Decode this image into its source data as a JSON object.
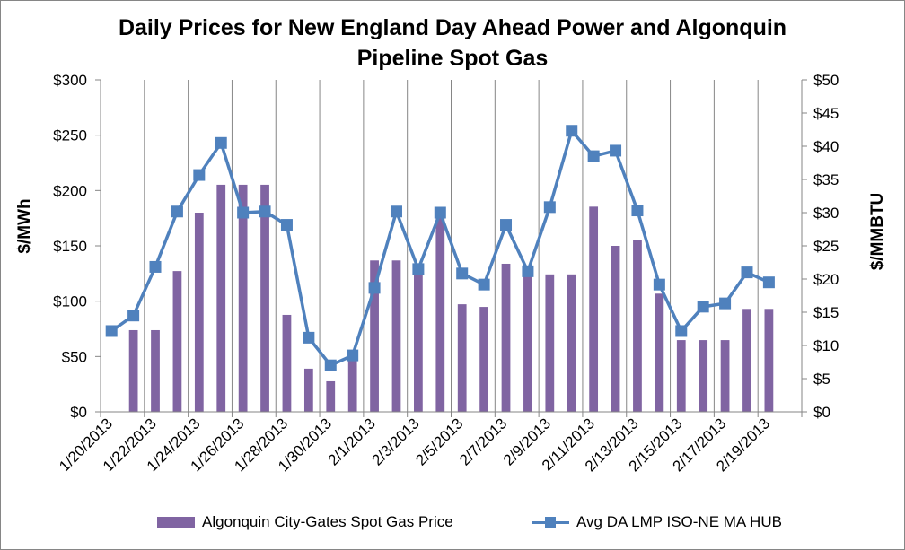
{
  "chart_data": {
    "type": "bar+line",
    "title_line1": "Daily Prices for New England Day Ahead Power and Algonquin",
    "title_line2": "Pipeline Spot Gas",
    "y_left_label": "$/MWh",
    "y_right_label": "$/MMBTU",
    "y_left_ticks": [
      "$0",
      "$50",
      "$100",
      "$150",
      "$200",
      "$250",
      "$300"
    ],
    "y_right_ticks": [
      "$0",
      "$5",
      "$10",
      "$15",
      "$20",
      "$25",
      "$30",
      "$35",
      "$40",
      "$45",
      "$50"
    ],
    "y_left_lim": [
      0,
      300
    ],
    "y_right_lim": [
      0,
      50
    ],
    "x_tick_labels": [
      "1/20/2013",
      "1/22/2013",
      "1/24/2013",
      "1/26/2013",
      "1/28/2013",
      "1/30/2013",
      "2/1/2013",
      "2/3/2013",
      "2/5/2013",
      "2/7/2013",
      "2/9/2013",
      "2/11/2013",
      "2/13/2013",
      "2/15/2013",
      "2/17/2013",
      "2/19/2013"
    ],
    "x_start_date": "2013-01-20",
    "x_end_date": "2013-02-20",
    "grid": "vertical",
    "legend_position": "bottom",
    "series": [
      {
        "name": "Algonquin City-Gates Spot Gas Price",
        "type": "bar",
        "axis": "right",
        "color": "#8064A2",
        "dates": [
          "1/21/2013",
          "1/22/2013",
          "1/23/2013",
          "1/24/2013",
          "1/25/2013",
          "1/26/2013",
          "1/27/2013",
          "1/28/2013",
          "1/29/2013",
          "1/30/2013",
          "1/31/2013",
          "2/1/2013",
          "2/2/2013",
          "2/3/2013",
          "2/4/2013",
          "2/5/2013",
          "2/6/2013",
          "2/7/2013",
          "2/8/2013",
          "2/9/2013",
          "2/10/2013",
          "2/11/2013",
          "2/12/2013",
          "2/13/2013",
          "2/14/2013",
          "2/15/2013",
          "2/16/2013",
          "2/17/2013",
          "2/18/2013",
          "2/19/2013",
          "2/20/2013"
        ],
        "values": [
          12.3,
          12.3,
          21.2,
          30.0,
          34.2,
          34.2,
          34.2,
          14.6,
          6.5,
          4.6,
          8.4,
          22.8,
          22.8,
          21.7,
          29.5,
          16.2,
          15.8,
          22.3,
          21.0,
          20.7,
          20.7,
          30.9,
          25.0,
          25.9,
          17.8,
          10.8,
          10.8,
          10.8,
          15.5,
          15.5,
          0
        ]
      },
      {
        "name": "Avg DA LMP ISO-NE MA HUB",
        "type": "line",
        "axis": "left",
        "color": "#4F81BD",
        "dates": [
          "1/20/2013",
          "1/21/2013",
          "1/22/2013",
          "1/23/2013",
          "1/24/2013",
          "1/25/2013",
          "1/26/2013",
          "1/27/2013",
          "1/28/2013",
          "1/29/2013",
          "1/30/2013",
          "1/31/2013",
          "2/1/2013",
          "2/2/2013",
          "2/3/2013",
          "2/4/2013",
          "2/5/2013",
          "2/6/2013",
          "2/7/2013",
          "2/8/2013",
          "2/9/2013",
          "2/10/2013",
          "2/11/2013",
          "2/12/2013",
          "2/13/2013",
          "2/14/2013",
          "2/15/2013",
          "2/16/2013",
          "2/17/2013",
          "2/18/2013",
          "2/19/2013"
        ],
        "values": [
          73,
          87,
          131,
          181,
          214,
          243,
          180,
          181,
          169,
          67,
          42,
          51,
          112,
          181,
          129,
          180,
          125,
          115,
          169,
          127,
          185,
          254,
          231,
          236,
          182,
          115,
          73,
          95,
          98,
          126,
          117
        ]
      }
    ]
  }
}
